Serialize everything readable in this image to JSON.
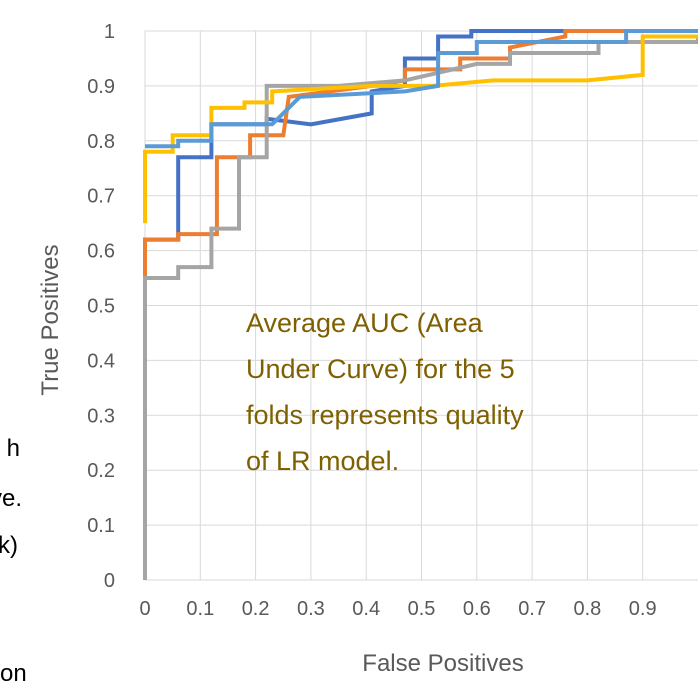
{
  "chart_data": {
    "type": "line",
    "title": "",
    "xlabel": "False Positives",
    "ylabel": "True Positives",
    "xlim": [
      0,
      1
    ],
    "ylim": [
      0,
      1
    ],
    "x_ticks": [
      "0",
      "0.1",
      "0.2",
      "0.3",
      "0.4",
      "0.5",
      "0.6",
      "0.7",
      "0.8",
      "0.9"
    ],
    "y_ticks": [
      "0",
      "0.1",
      "0.2",
      "0.3",
      "0.4",
      "0.5",
      "0.6",
      "0.7",
      "0.8",
      "0.9",
      "1"
    ],
    "grid": "on",
    "legend": "none",
    "annotation": [
      "Average AUC (Area",
      "Under Curve) for the 5",
      "folds represents quality",
      "of LR model."
    ],
    "series": [
      {
        "color": "#4472c4",
        "points": [
          [
            0,
            0
          ],
          [
            0,
            0.62
          ],
          [
            0.06,
            0.62
          ],
          [
            0.06,
            0.77
          ],
          [
            0.12,
            0.77
          ],
          [
            0.12,
            0.83
          ],
          [
            0.22,
            0.83
          ],
          [
            0.22,
            0.84
          ],
          [
            0.3,
            0.83
          ],
          [
            0.41,
            0.85
          ],
          [
            0.41,
            0.89
          ],
          [
            0.47,
            0.9
          ],
          [
            0.47,
            0.95
          ],
          [
            0.53,
            0.95
          ],
          [
            0.53,
            0.99
          ],
          [
            0.59,
            0.99
          ],
          [
            0.59,
            1
          ],
          [
            1,
            1
          ]
        ]
      },
      {
        "color": "#ed7d31",
        "points": [
          [
            0,
            0
          ],
          [
            0,
            0.62
          ],
          [
            0.06,
            0.62
          ],
          [
            0.06,
            0.63
          ],
          [
            0.13,
            0.63
          ],
          [
            0.13,
            0.77
          ],
          [
            0.19,
            0.77
          ],
          [
            0.19,
            0.81
          ],
          [
            0.25,
            0.81
          ],
          [
            0.26,
            0.88
          ],
          [
            0.41,
            0.9
          ],
          [
            0.47,
            0.91
          ],
          [
            0.47,
            0.93
          ],
          [
            0.57,
            0.93
          ],
          [
            0.57,
            0.95
          ],
          [
            0.66,
            0.95
          ],
          [
            0.66,
            0.97
          ],
          [
            0.76,
            0.99
          ],
          [
            0.76,
            1
          ],
          [
            1,
            1
          ]
        ]
      },
      {
        "color": "#a5a5a5",
        "points": [
          [
            0,
            0
          ],
          [
            0,
            0.55
          ],
          [
            0.06,
            0.55
          ],
          [
            0.06,
            0.57
          ],
          [
            0.12,
            0.57
          ],
          [
            0.12,
            0.64
          ],
          [
            0.17,
            0.64
          ],
          [
            0.17,
            0.77
          ],
          [
            0.22,
            0.77
          ],
          [
            0.22,
            0.9
          ],
          [
            0.29,
            0.9
          ],
          [
            0.35,
            0.9
          ],
          [
            0.47,
            0.91
          ],
          [
            0.6,
            0.94
          ],
          [
            0.66,
            0.94
          ],
          [
            0.66,
            0.96
          ],
          [
            0.82,
            0.96
          ],
          [
            0.82,
            0.98
          ],
          [
            1,
            0.98
          ],
          [
            1,
            0.99
          ]
        ]
      },
      {
        "color": "#ffc000",
        "points": [
          [
            0,
            0.65
          ],
          [
            0,
            0.78
          ],
          [
            0.05,
            0.78
          ],
          [
            0.05,
            0.81
          ],
          [
            0.12,
            0.81
          ],
          [
            0.12,
            0.86
          ],
          [
            0.18,
            0.86
          ],
          [
            0.18,
            0.87
          ],
          [
            0.23,
            0.87
          ],
          [
            0.23,
            0.89
          ],
          [
            0.41,
            0.9
          ],
          [
            0.52,
            0.9
          ],
          [
            0.63,
            0.91
          ],
          [
            0.63,
            0.91
          ],
          [
            0.8,
            0.91
          ],
          [
            0.9,
            0.92
          ],
          [
            0.9,
            0.99
          ],
          [
            1,
            0.99
          ]
        ]
      },
      {
        "color": "#5b9bd5",
        "points": [
          [
            0,
            0.79
          ],
          [
            0.06,
            0.79
          ],
          [
            0.06,
            0.8
          ],
          [
            0.12,
            0.8
          ],
          [
            0.12,
            0.83
          ],
          [
            0.23,
            0.83
          ],
          [
            0.28,
            0.88
          ],
          [
            0.47,
            0.89
          ],
          [
            0.53,
            0.9
          ],
          [
            0.53,
            0.96
          ],
          [
            0.6,
            0.96
          ],
          [
            0.6,
            0.98
          ],
          [
            0.87,
            0.98
          ],
          [
            0.87,
            1
          ],
          [
            1,
            1
          ]
        ]
      }
    ]
  },
  "clipped_left": [
    "h",
    "rve.",
    "nk)"
  ],
  "clipped_bottom": "on"
}
